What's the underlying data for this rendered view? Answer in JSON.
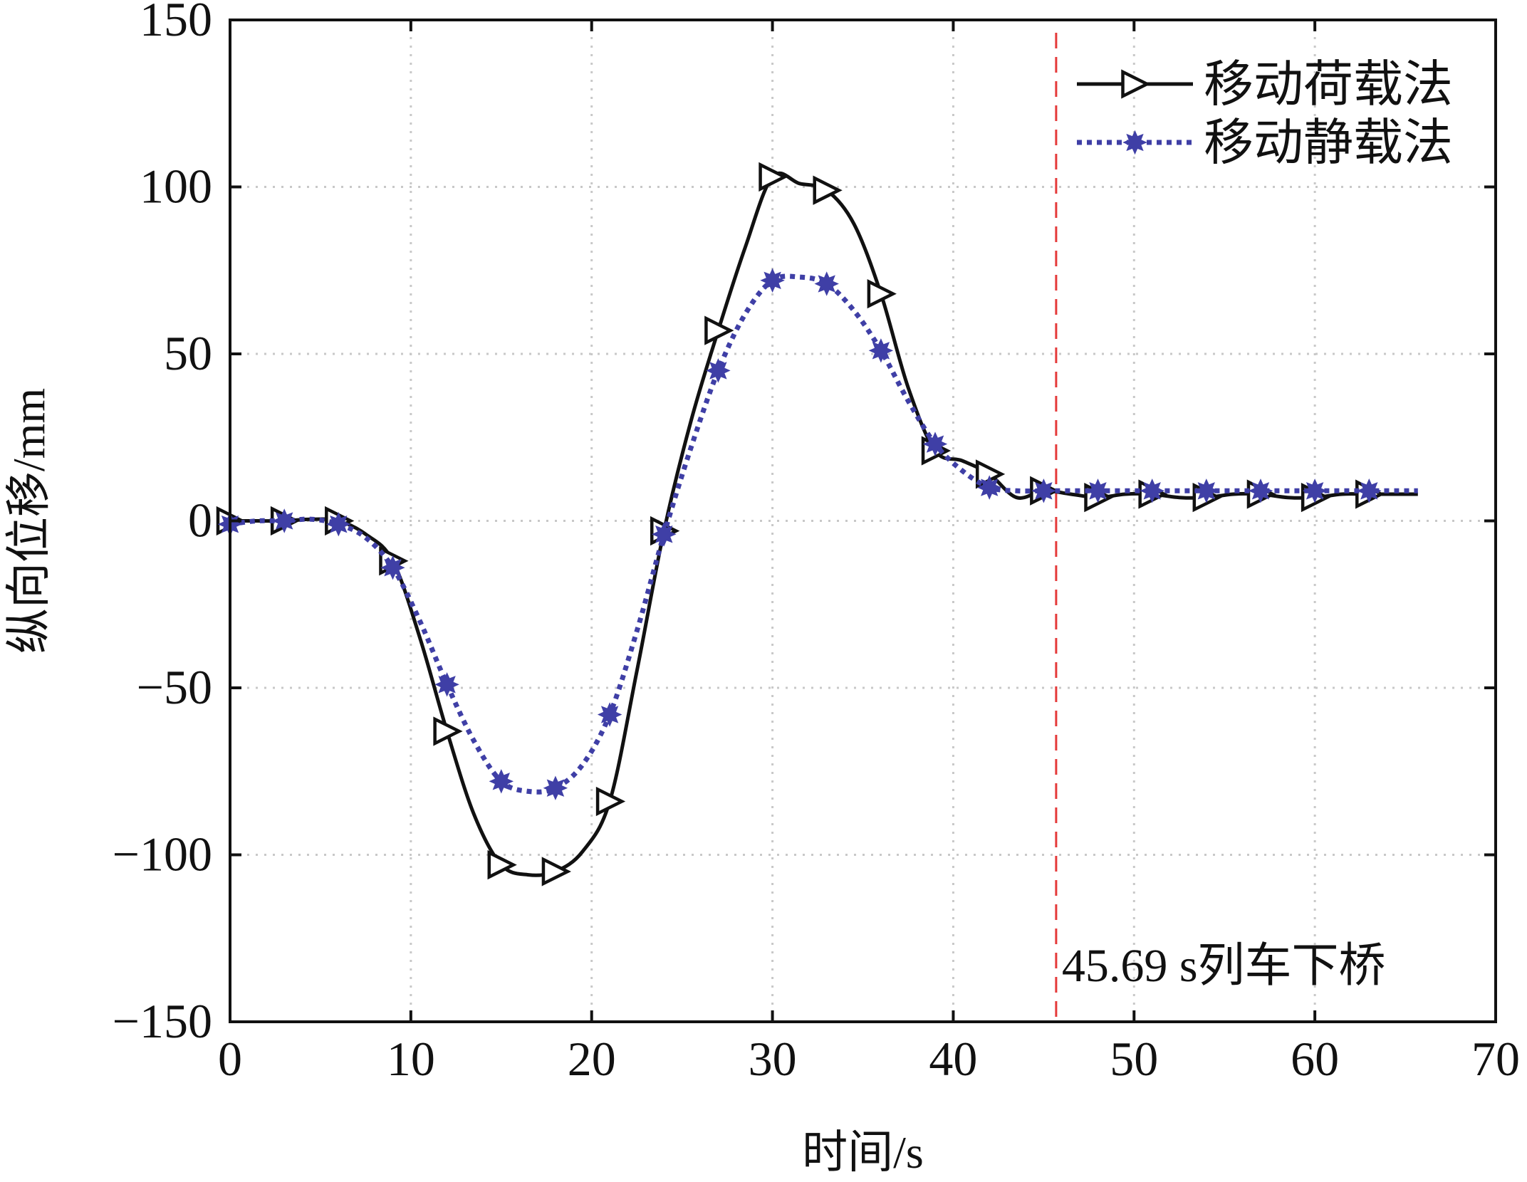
{
  "chart_data": {
    "type": "line",
    "title": "",
    "xlabel": "时间/s",
    "ylabel": "纵向位移/mm",
    "xlim": [
      0,
      70
    ],
    "ylim": [
      -150,
      150
    ],
    "x_ticks": [
      0,
      10,
      20,
      30,
      40,
      50,
      60,
      70
    ],
    "y_ticks": [
      -150,
      -100,
      -50,
      0,
      50,
      100,
      150
    ],
    "grid": true,
    "legend_position": "top-right",
    "series": [
      {
        "name": "移动荷载法",
        "color": "#111111",
        "line_style": "solid",
        "marker": "right-triangle",
        "x": [
          0,
          1.5,
          3,
          4.5,
          6,
          7.5,
          9,
          10.5,
          12,
          13.5,
          15,
          16.5,
          18,
          19.5,
          21,
          22.5,
          24,
          25.5,
          27,
          28.5,
          30,
          31.5,
          33,
          34.5,
          36,
          37.5,
          39,
          40.5,
          42,
          43.5,
          45,
          46.5,
          48,
          49.5,
          51,
          52.5,
          54,
          55.5,
          57,
          58.5,
          60,
          61.5,
          63,
          64.5,
          65.7
        ],
        "y": [
          0,
          0,
          0,
          0.5,
          0,
          -4,
          -12,
          -35,
          -63,
          -88,
          -103,
          -106,
          -105,
          -99,
          -84,
          -45,
          -3,
          30,
          57,
          82,
          103,
          101,
          99,
          89,
          68,
          40,
          21,
          18,
          14,
          7,
          9,
          8,
          7,
          8,
          8,
          7,
          7,
          8,
          8,
          7,
          7,
          8,
          8,
          8,
          8
        ],
        "marker_x": [
          0,
          3,
          6,
          9,
          12,
          15,
          18,
          21,
          24,
          27,
          30,
          33,
          36,
          39,
          42,
          45,
          48,
          51,
          54,
          57,
          60,
          63
        ]
      },
      {
        "name": "移动静载法",
        "color": "#3f3fa6",
        "line_style": "dotted",
        "marker": "star-dot",
        "x": [
          0,
          1.5,
          3,
          4.5,
          6,
          7.5,
          9,
          10.5,
          12,
          13.5,
          15,
          16.5,
          18,
          19.5,
          21,
          22.5,
          24,
          25.5,
          27,
          28.5,
          30,
          31.5,
          33,
          34.5,
          36,
          37.5,
          39,
          40.5,
          42,
          43.5,
          45,
          46.5,
          48,
          49.5,
          51,
          52.5,
          54,
          55.5,
          57,
          58.5,
          60,
          61.5,
          63,
          64.5,
          65.7
        ],
        "y": [
          -1,
          0,
          0,
          0.5,
          -1,
          -5,
          -14,
          -30,
          -49,
          -66,
          -78,
          -81,
          -80,
          -73,
          -58,
          -33,
          -4,
          22,
          45,
          62,
          72,
          73,
          71,
          63,
          51,
          36,
          23,
          15,
          10,
          9,
          9,
          9,
          9,
          9,
          9,
          9,
          9,
          9,
          9,
          9,
          9,
          9,
          9,
          9,
          9
        ],
        "marker_x": [
          0,
          3,
          6,
          9,
          12,
          15,
          18,
          21,
          24,
          27,
          30,
          33,
          36,
          39,
          42,
          45,
          48,
          51,
          54,
          57,
          60,
          63
        ]
      }
    ],
    "reference_line": {
      "x": 45.69,
      "color": "#e53a3a",
      "style": "dashed",
      "annotation": "45.69 s列车下桥"
    }
  }
}
